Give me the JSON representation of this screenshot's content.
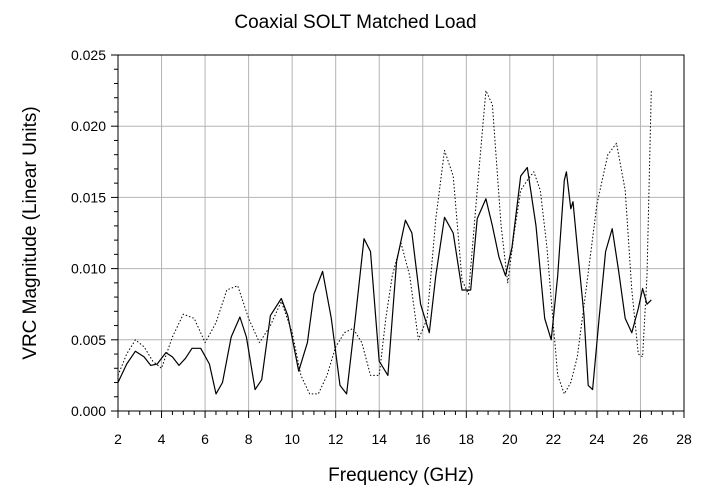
{
  "chart_data": {
    "type": "line",
    "title": "Coaxial SOLT Matched Load",
    "xlabel": "Frequency (GHz)",
    "ylabel": "VRC Magnitude (Linear Units)",
    "xlim": [
      2,
      28
    ],
    "ylim": [
      0.0,
      0.025
    ],
    "xticks": [
      "2",
      "4",
      "6",
      "8",
      "10",
      "12",
      "14",
      "16",
      "18",
      "20",
      "22",
      "24",
      "26",
      "28"
    ],
    "yticks": [
      "0.000",
      "0.005",
      "0.010",
      "0.015",
      "0.020",
      "0.025"
    ],
    "grid": true,
    "legend": "none",
    "series": [
      {
        "style": "solid",
        "color": "#000000",
        "x": [
          2.0,
          2.4,
          2.8,
          3.2,
          3.5,
          3.8,
          4.2,
          4.5,
          4.8,
          5.1,
          5.4,
          5.8,
          6.2,
          6.5,
          6.8,
          7.2,
          7.6,
          7.9,
          8.3,
          8.6,
          9.0,
          9.5,
          9.8,
          10.3,
          10.7,
          11.0,
          11.4,
          11.8,
          12.2,
          12.5,
          12.9,
          13.3,
          13.6,
          14.0,
          14.4,
          14.8,
          15.2,
          15.5,
          15.9,
          16.3,
          16.6,
          17.0,
          17.4,
          17.8,
          18.2,
          18.5,
          18.9,
          19.2,
          19.5,
          19.8,
          20.1,
          20.5,
          20.8,
          21.2,
          21.6,
          21.9,
          22.2,
          22.5,
          22.6,
          22.7,
          22.8,
          22.9,
          23.1,
          23.4,
          23.6,
          23.8,
          24.1,
          24.4,
          24.7,
          25.0,
          25.3,
          25.6,
          25.9,
          26.1,
          26.3,
          26.5
        ],
        "y": [
          0.002,
          0.0033,
          0.0042,
          0.0038,
          0.0032,
          0.0033,
          0.0041,
          0.0038,
          0.0032,
          0.0037,
          0.0044,
          0.0044,
          0.0033,
          0.0012,
          0.002,
          0.0052,
          0.0066,
          0.0052,
          0.0015,
          0.0022,
          0.0067,
          0.0079,
          0.0067,
          0.0028,
          0.0048,
          0.0082,
          0.0098,
          0.0065,
          0.0018,
          0.0012,
          0.0065,
          0.0121,
          0.0112,
          0.0035,
          0.0025,
          0.0105,
          0.0134,
          0.0125,
          0.0075,
          0.0055,
          0.0095,
          0.0136,
          0.0125,
          0.0085,
          0.0085,
          0.0135,
          0.0149,
          0.013,
          0.0108,
          0.0095,
          0.0115,
          0.0165,
          0.0171,
          0.013,
          0.0065,
          0.005,
          0.0095,
          0.0162,
          0.0168,
          0.0155,
          0.0142,
          0.0147,
          0.0115,
          0.0068,
          0.0018,
          0.0015,
          0.0065,
          0.0112,
          0.0128,
          0.0098,
          0.0065,
          0.0055,
          0.0072,
          0.0086,
          0.0075,
          0.0078
        ]
      },
      {
        "style": "dotted",
        "color": "#000000",
        "x": [
          2.0,
          2.4,
          2.8,
          3.2,
          3.6,
          4.0,
          4.5,
          5.0,
          5.5,
          6.0,
          6.5,
          7.0,
          7.5,
          8.0,
          8.5,
          9.0,
          9.5,
          10.0,
          10.4,
          10.8,
          11.2,
          11.6,
          12.0,
          12.4,
          12.8,
          13.2,
          13.6,
          14.0,
          14.3,
          14.6,
          15.0,
          15.4,
          15.8,
          16.2,
          16.6,
          17.0,
          17.4,
          17.8,
          18.1,
          18.5,
          18.9,
          19.2,
          19.6,
          19.9,
          20.2,
          20.5,
          20.8,
          21.1,
          21.4,
          21.7,
          22.0,
          22.2,
          22.5,
          22.8,
          23.1,
          23.5,
          24.0,
          24.5,
          24.9,
          25.3,
          25.6,
          25.9,
          26.1,
          26.3,
          26.5
        ],
        "y": [
          0.0025,
          0.004,
          0.005,
          0.0045,
          0.0035,
          0.003,
          0.0052,
          0.0068,
          0.0065,
          0.0048,
          0.0062,
          0.0085,
          0.0088,
          0.0065,
          0.0048,
          0.006,
          0.0077,
          0.0055,
          0.0025,
          0.0012,
          0.0012,
          0.0025,
          0.0045,
          0.0055,
          0.0058,
          0.0048,
          0.0025,
          0.0025,
          0.0065,
          0.0095,
          0.0118,
          0.0095,
          0.005,
          0.0065,
          0.0135,
          0.0183,
          0.0165,
          0.0092,
          0.0082,
          0.0155,
          0.0225,
          0.0215,
          0.013,
          0.009,
          0.0125,
          0.0155,
          0.0162,
          0.0168,
          0.0155,
          0.0115,
          0.006,
          0.0025,
          0.0012,
          0.002,
          0.0038,
          0.0085,
          0.0145,
          0.018,
          0.0188,
          0.0155,
          0.0085,
          0.004,
          0.0038,
          0.0095,
          0.0225
        ]
      }
    ]
  }
}
